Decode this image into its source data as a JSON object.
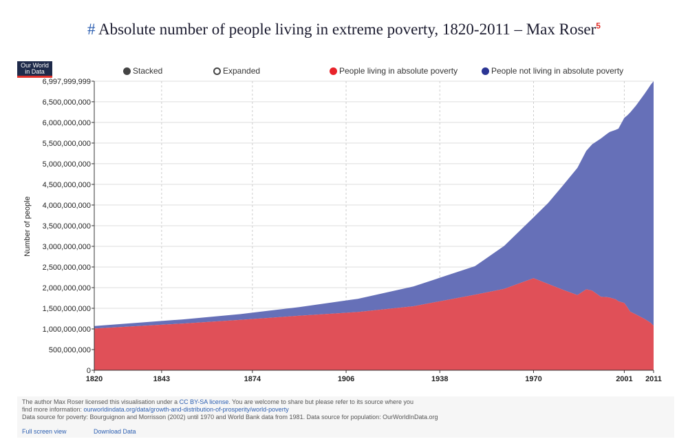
{
  "title": {
    "hash": "#",
    "text": "Absolute number of people living in extreme poverty, 1820-2011 – Max Roser",
    "footnote": "5"
  },
  "logo": {
    "line1": "Our World",
    "line2": "in Data"
  },
  "controls": {
    "stacked_label": "Stacked",
    "expanded_label": "Expanded",
    "selected": "Stacked"
  },
  "colors": {
    "poverty": "#e05058",
    "not_poverty": "#6670b8",
    "poverty_dot": "#e8232a",
    "not_poverty_dot": "#2b3594"
  },
  "chart_data": {
    "type": "area",
    "stacked": true,
    "ylabel": "Number of people",
    "xlabel": "",
    "xlim": [
      1820,
      2011
    ],
    "ylim": [
      0,
      6997999999
    ],
    "y_tick_labels": [
      "0",
      "500,000,000",
      "1,000,000,000",
      "1,500,000,000",
      "2,000,000,000",
      "2,500,000,000",
      "3,000,000,000",
      "3,500,000,000",
      "4,000,000,000",
      "4,500,000,000",
      "5,000,000,000",
      "5,500,000,000",
      "6,000,000,000",
      "6,500,000,000",
      "6,997,999,999"
    ],
    "y_tick_values": [
      0,
      500000000,
      1000000000,
      1500000000,
      2000000000,
      2500000000,
      3000000000,
      3500000000,
      4000000000,
      4500000000,
      5000000000,
      5500000000,
      6000000000,
      6500000000,
      6997999999
    ],
    "x_tick_labels": [
      "1820",
      "1843",
      "1874",
      "1906",
      "1938",
      "1970",
      "2001",
      "2011"
    ],
    "x_tick_values": [
      1820,
      1843,
      1874,
      1906,
      1938,
      1970,
      2001,
      2011
    ],
    "grid": true,
    "legend_position": "top",
    "x": [
      1820,
      1850,
      1870,
      1890,
      1910,
      1929,
      1950,
      1960,
      1970,
      1975,
      1980,
      1985,
      1988,
      1990,
      1993,
      1995,
      1996,
      1998,
      1999,
      2001,
      2002,
      2003,
      2005,
      2008,
      2010,
      2011
    ],
    "series": [
      {
        "name": "People living in absolute poverty",
        "values": [
          1010000000,
          1130000000,
          1220000000,
          1320000000,
          1410000000,
          1550000000,
          1830000000,
          1970000000,
          2230000000,
          2090000000,
          1950000000,
          1820000000,
          1960000000,
          1930000000,
          1780000000,
          1770000000,
          1760000000,
          1720000000,
          1670000000,
          1630000000,
          1530000000,
          1420000000,
          1350000000,
          1240000000,
          1150000000,
          1080000000
        ]
      },
      {
        "name": "People not living in absolute poverty",
        "values": [
          60000000,
          100000000,
          140000000,
          210000000,
          320000000,
          480000000,
          690000000,
          1040000000,
          1470000000,
          1960000000,
          2520000000,
          3080000000,
          3350000000,
          3540000000,
          3830000000,
          3950000000,
          4010000000,
          4100000000,
          4180000000,
          4480000000,
          4640000000,
          4820000000,
          5060000000,
          5460000000,
          5760000000,
          5918000000
        ]
      }
    ]
  },
  "footer": {
    "line1_pre": "The author Max Roser licensed this visualisation under a ",
    "license_link": "CC BY-SA license",
    "line1_post": ". You are welcome to share but please refer to its source where you",
    "line2_pre": "find more information: ",
    "source_link": "ourworldindata.org/data/growth-and-distribution-of-prosperity/world-poverty",
    "line3": "Data source for poverty: Bourguignon and Morrisson (2002) until 1970 and World Bank data from 1981. Data source for population: OurWorldInData.org",
    "full_screen": "Full screen view",
    "download": "Download Data"
  }
}
